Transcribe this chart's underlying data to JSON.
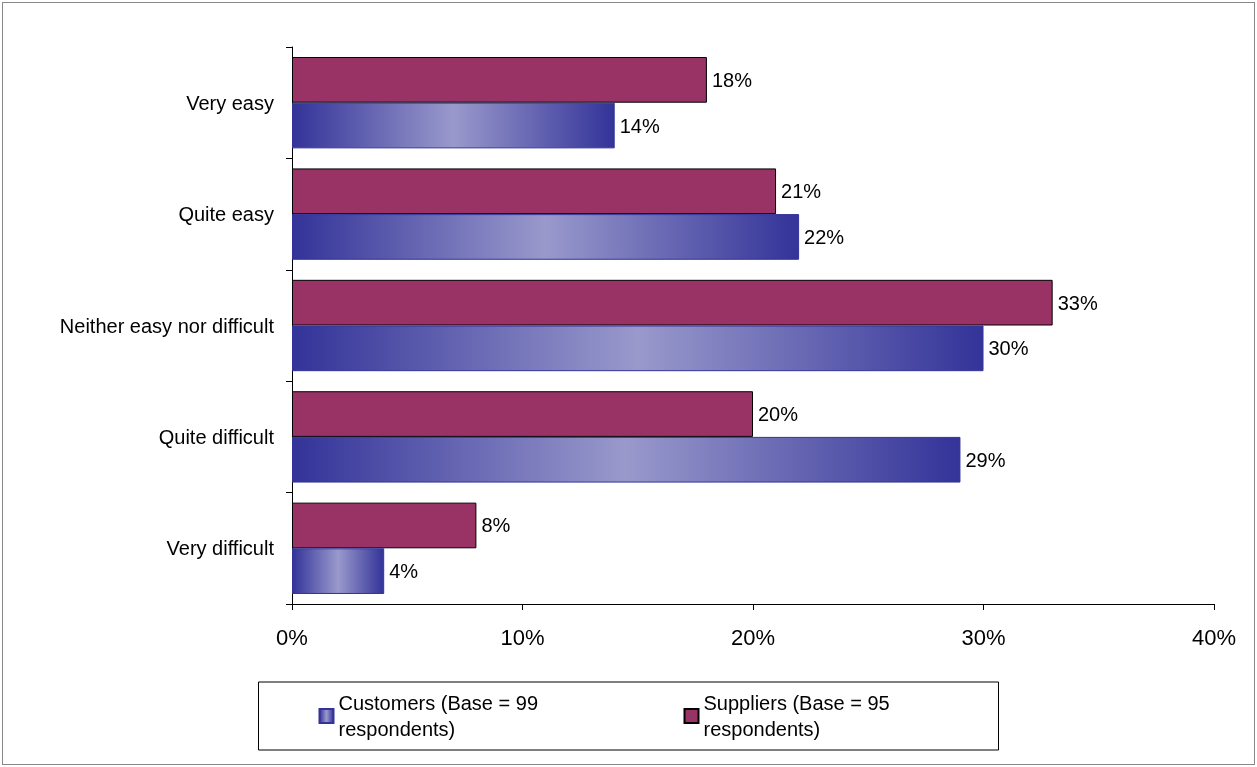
{
  "chart_data": {
    "type": "bar",
    "orientation": "horizontal",
    "categories": [
      "Very easy",
      "Quite easy",
      "Neither easy nor difficult",
      "Quite difficult",
      "Very difficult"
    ],
    "series": [
      {
        "name": "Customers (Base = 99 respondents)",
        "color": "#333399",
        "values": [
          14,
          22,
          30,
          29,
          4
        ],
        "value_labels": [
          "14%",
          "22%",
          "30%",
          "29%",
          "4%"
        ]
      },
      {
        "name": "Suppliers (Base = 95 respondents)",
        "color": "#993366",
        "values": [
          18,
          21,
          33,
          20,
          8
        ],
        "value_labels": [
          "18%",
          "21%",
          "33%",
          "20%",
          "8%"
        ]
      }
    ],
    "xlim": [
      0,
      40
    ],
    "xticks": [
      {
        "value": 0,
        "label": "0%"
      },
      {
        "value": 10,
        "label": "10%"
      },
      {
        "value": 20,
        "label": "20%"
      },
      {
        "value": 30,
        "label": "30%"
      },
      {
        "value": 40,
        "label": "40%"
      }
    ],
    "grid": false,
    "legend": "bottom"
  }
}
